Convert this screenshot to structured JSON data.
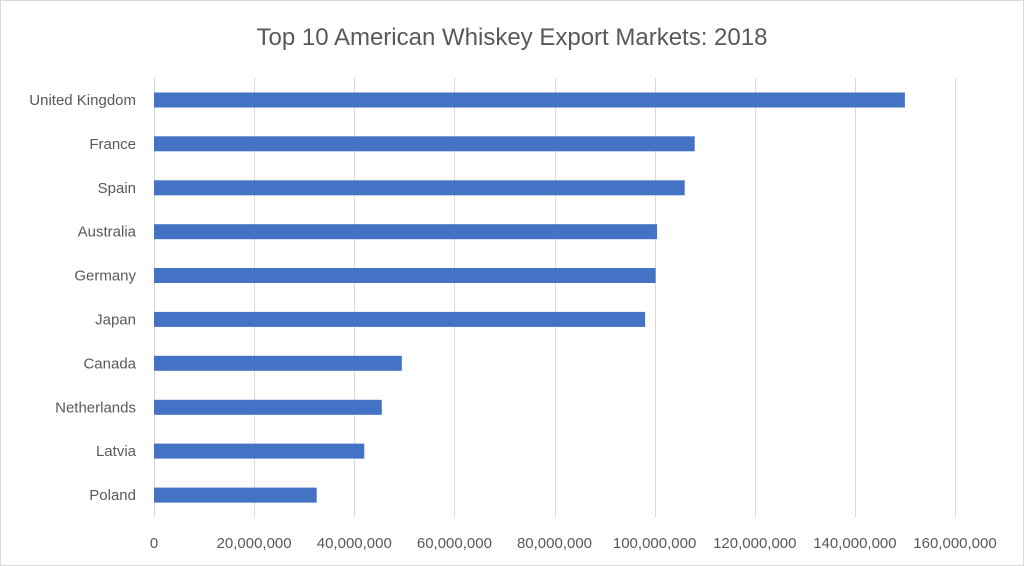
{
  "chart_data": {
    "type": "bar",
    "orientation": "horizontal",
    "title": "Top 10 American Whiskey Export Markets: 2018",
    "categories": [
      "United Kingdom",
      "France",
      "Spain",
      "Australia",
      "Germany",
      "Japan",
      "Canada",
      "Netherlands",
      "Latvia",
      "Poland"
    ],
    "series": [
      {
        "values": [
          150000000,
          108000000,
          106000000,
          100500000,
          100200000,
          98100000,
          49500000,
          45500000,
          42000000,
          32500000
        ],
        "color": "#4472c4"
      }
    ],
    "xlim": [
      0,
      160000000
    ],
    "xticks": [
      0,
      20000000,
      40000000,
      60000000,
      80000000,
      100000000,
      120000000,
      140000000,
      160000000
    ],
    "xtick_labels": [
      "0",
      "20,000,000",
      "40,000,000",
      "60,000,000",
      "80,000,000",
      "100,000,000",
      "120,000,000",
      "140,000,000",
      "160,000,000"
    ],
    "xlabel": "",
    "ylabel": "",
    "grid": "vertical",
    "legend": "none"
  }
}
